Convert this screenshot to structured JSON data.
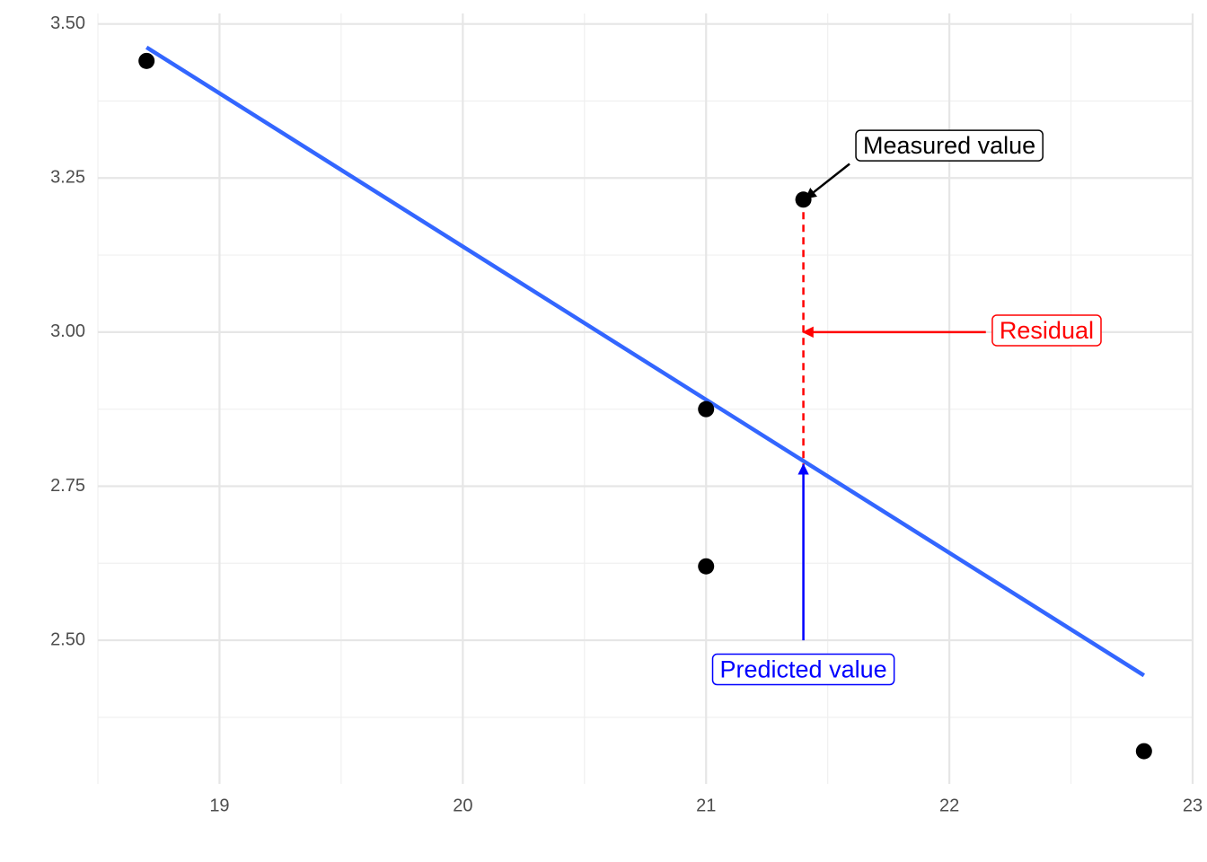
{
  "chart_data": {
    "type": "scatter",
    "x": [
      18.7,
      21.4,
      21.0,
      21.0,
      22.8
    ],
    "values": [
      3.44,
      3.215,
      2.875,
      2.62,
      2.32
    ],
    "color": "#000000",
    "xlim": [
      18.5,
      23.0
    ],
    "ylim": [
      2.267,
      3.517
    ],
    "xticks": [
      19,
      20,
      21,
      22,
      23
    ],
    "yticks": [
      {
        "value": 2.5,
        "label": "2.50"
      },
      {
        "value": 2.75,
        "label": "2.75"
      },
      {
        "value": 3.0,
        "label": "3.00"
      },
      {
        "value": 3.25,
        "label": "3.25"
      },
      {
        "value": 3.5,
        "label": "3.50"
      }
    ],
    "x_minor": [
      18.5,
      19.5,
      20.5,
      21.5,
      22.5
    ],
    "y_minor": [
      2.375,
      2.625,
      2.875,
      3.125,
      3.375
    ],
    "grid": true,
    "fit_line": {
      "x": [
        18.7,
        22.8
      ],
      "values": [
        3.462,
        2.443
      ],
      "color": "#3366ff"
    },
    "residual": {
      "x": [
        21.4,
        21.4
      ],
      "values": [
        3.215,
        2.785
      ],
      "color": "#ff0000"
    },
    "annotations": [
      {
        "text": "Measured value",
        "x": 22.0,
        "y": 3.3,
        "color": "#000000",
        "arrow_x": [
          21.59,
          21.41
        ],
        "arrow_y": [
          3.273,
          3.217
        ]
      },
      {
        "text": "Residual",
        "x": 22.4,
        "y": 3.0,
        "color": "#ff0000",
        "arrow_x": [
          22.15,
          21.4
        ],
        "arrow_y": [
          3.0,
          3.0
        ]
      },
      {
        "text": "Predicted value",
        "x": 21.4,
        "y": 2.45,
        "color": "#0000ff",
        "arrow_x": [
          21.4,
          21.4
        ],
        "arrow_y": [
          2.5,
          2.785
        ]
      }
    ]
  }
}
